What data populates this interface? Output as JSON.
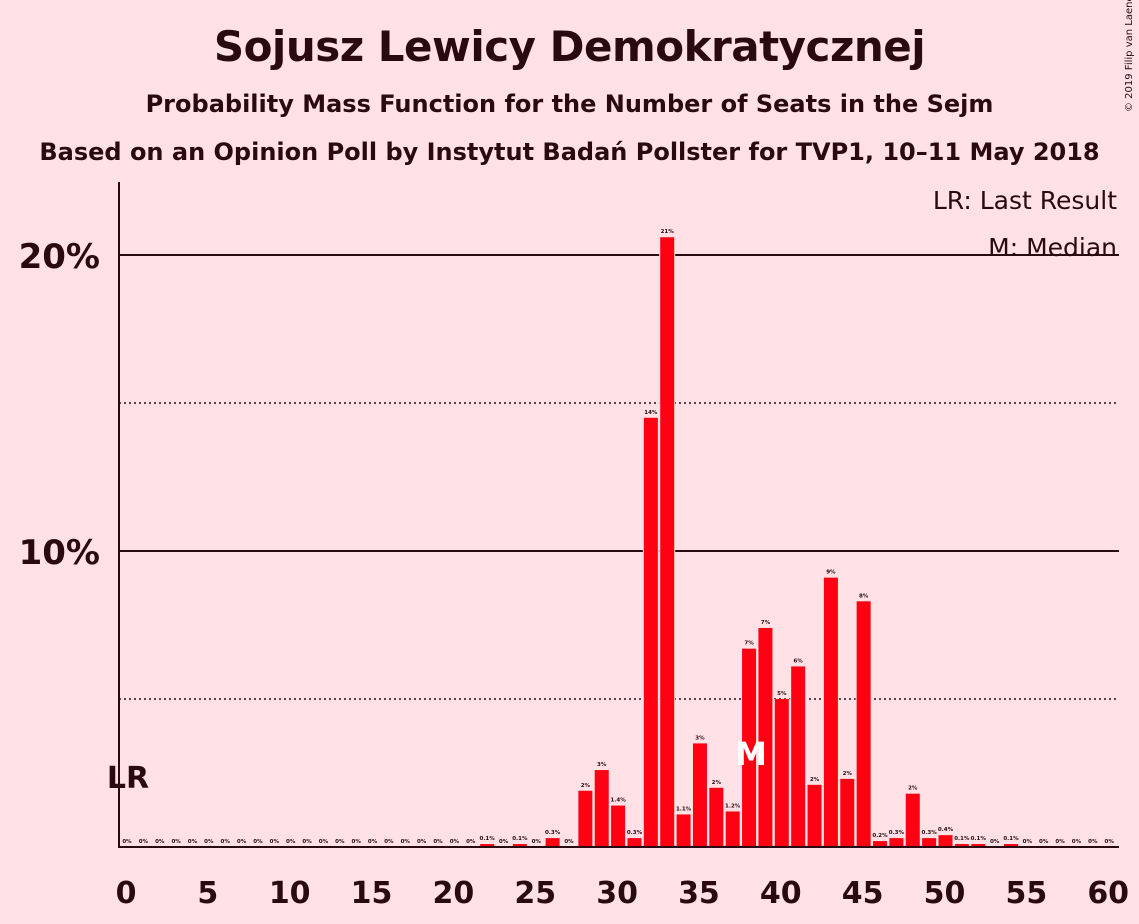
{
  "header": {
    "title": "Sojusz Lewicy Demokratycznej",
    "subtitle": "Probability Mass Function for the Number of Seats in the Sejm",
    "subtitle2": "Based on an Opinion Poll by Instytut Badań Pollster for TVP1, 10–11 May 2018",
    "copyright": "© 2019 Filip van Laenen"
  },
  "legend": {
    "lr": "LR: Last Result",
    "median": "M: Median"
  },
  "markers": {
    "last_result_label": "LR",
    "last_result_seat": 0,
    "median_label": "M",
    "median_seat": 38
  },
  "colors": {
    "background": "#ffe1e6",
    "bar": "#ff0013",
    "text": "#2a0a0e"
  },
  "chart_data": {
    "type": "bar",
    "title": "Sojusz Lewicy Demokratycznej",
    "xlabel": "",
    "ylabel": "",
    "xlim": [
      0,
      60
    ],
    "ylim": [
      0,
      22.5
    ],
    "x_ticks": [
      "0",
      "5",
      "10",
      "15",
      "20",
      "25",
      "30",
      "35",
      "40",
      "45",
      "50",
      "55",
      "60"
    ],
    "y_ticks": [
      {
        "value": 10,
        "label": "10%"
      },
      {
        "value": 20,
        "label": "20%"
      }
    ],
    "dotted_gridlines": [
      5,
      15
    ],
    "legend_position": "top-right",
    "x": [
      0,
      1,
      2,
      3,
      4,
      5,
      6,
      7,
      8,
      9,
      10,
      11,
      12,
      13,
      14,
      15,
      16,
      17,
      18,
      19,
      20,
      21,
      22,
      23,
      24,
      25,
      26,
      27,
      28,
      29,
      30,
      31,
      32,
      33,
      34,
      35,
      36,
      37,
      38,
      39,
      40,
      41,
      42,
      43,
      44,
      45,
      46,
      47,
      48,
      49,
      50,
      51,
      52,
      53,
      54,
      55,
      56,
      57,
      58,
      59,
      60
    ],
    "values": [
      0,
      0,
      0,
      0,
      0,
      0,
      0,
      0,
      0,
      0,
      0,
      0,
      0,
      0,
      0,
      0,
      0,
      0,
      0,
      0,
      0,
      0,
      0.1,
      0,
      0.1,
      0,
      0.3,
      0,
      1.9,
      2.6,
      1.4,
      0.3,
      14.5,
      20.6,
      1.1,
      3.5,
      2.0,
      1.2,
      6.7,
      7.4,
      5.0,
      6.1,
      2.1,
      9.1,
      2.3,
      8.3,
      0.2,
      0.3,
      1.8,
      0.3,
      0.4,
      0.1,
      0.1,
      0,
      0.1,
      0,
      0,
      0,
      0,
      0,
      0
    ],
    "data_labels": [
      "0%",
      "0%",
      "0%",
      "0%",
      "0%",
      "0%",
      "0%",
      "0%",
      "0%",
      "0%",
      "0%",
      "0%",
      "0%",
      "0%",
      "0%",
      "0%",
      "0%",
      "0%",
      "0%",
      "0%",
      "0%",
      "0%",
      "0.1%",
      "0%",
      "0.1%",
      "0%",
      "0.3%",
      "0%",
      "2%",
      "3%",
      "1.4%",
      "0.3%",
      "14%",
      "21%",
      "1.1%",
      "3%",
      "2%",
      "1.2%",
      "7%",
      "7%",
      "5%",
      "6%",
      "2%",
      "9%",
      "2%",
      "8%",
      "0.2%",
      "0.3%",
      "2%",
      "0.3%",
      "0.4%",
      "0.1%",
      "0.1%",
      "0%",
      "0.1%",
      "0%",
      "0%",
      "0%",
      "0%",
      "0%",
      "0%"
    ]
  }
}
